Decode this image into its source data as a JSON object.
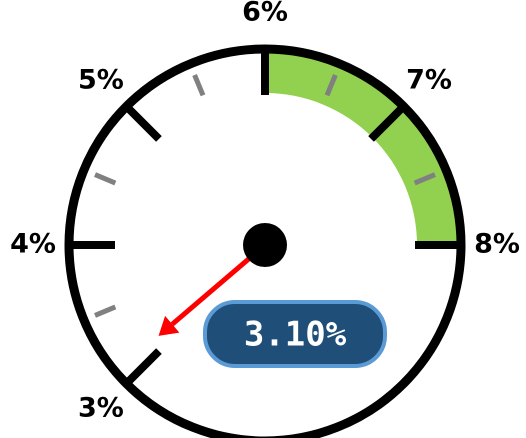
{
  "chart_data": {
    "type": "gauge",
    "value": 3.1,
    "value_label": "3.10%",
    "ylim": [
      3,
      8
    ],
    "yticks": [
      {
        "value": 3,
        "label": "3%"
      },
      {
        "value": 4,
        "label": "4%"
      },
      {
        "value": 5,
        "label": "5%"
      },
      {
        "value": 6,
        "label": "6%"
      },
      {
        "value": 7,
        "label": "7%"
      },
      {
        "value": 8,
        "label": "8%"
      }
    ],
    "minor_ticks": [
      3.5,
      4.5,
      5.5,
      6.5,
      7.5
    ],
    "bands": [
      {
        "from": 6,
        "to": 8,
        "color": "#92d050"
      }
    ],
    "needle_color": "#ff0000"
  }
}
